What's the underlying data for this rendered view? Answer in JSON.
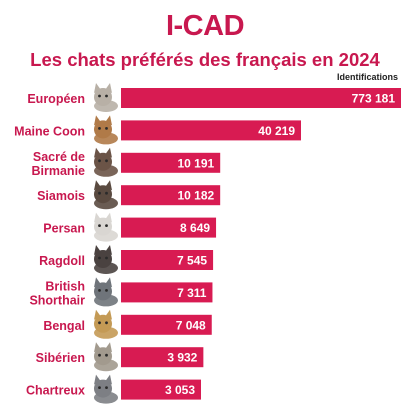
{
  "brand": {
    "logo_text": "I-CAD",
    "color": "#c8184f"
  },
  "chart_data": {
    "type": "bar",
    "orientation": "horizontal",
    "title": "Les chats préférés des français en 2024",
    "value_label": "Identifications",
    "categories": [
      "Européen",
      "Maine Coon",
      "Sacré de Birmanie",
      "Siamois",
      "Persan",
      "Ragdoll",
      "British Shorthair",
      "Bengal",
      "Sibérien",
      "Chartreux"
    ],
    "category_lines": [
      [
        "Européen"
      ],
      [
        "Maine Coon"
      ],
      [
        "Sacré de",
        "Birmanie"
      ],
      [
        "Siamois"
      ],
      [
        "Persan"
      ],
      [
        "Ragdoll"
      ],
      [
        "British",
        "Shorthair"
      ],
      [
        "Bengal"
      ],
      [
        "Sibérien"
      ],
      [
        "Chartreux"
      ]
    ],
    "values": [
      773181,
      40219,
      10191,
      10182,
      8649,
      7545,
      7311,
      7048,
      3932,
      3053
    ],
    "value_labels": [
      "773 181",
      "40 219",
      "10 191",
      "10 182",
      "8 649",
      "7 545",
      "7 311",
      "7 048",
      "3 932",
      "3 053"
    ],
    "icons": [
      "european-cat-icon",
      "maine-coon-cat-icon",
      "sacred-birman-cat-icon",
      "siamese-cat-icon",
      "persian-cat-icon",
      "ragdoll-cat-icon",
      "british-shorthair-cat-icon",
      "bengal-cat-icon",
      "siberian-cat-icon",
      "chartreux-cat-icon"
    ],
    "bar_color": "#d81b52",
    "label_color": "#c8184f",
    "value_text_color": "#ffffff"
  }
}
